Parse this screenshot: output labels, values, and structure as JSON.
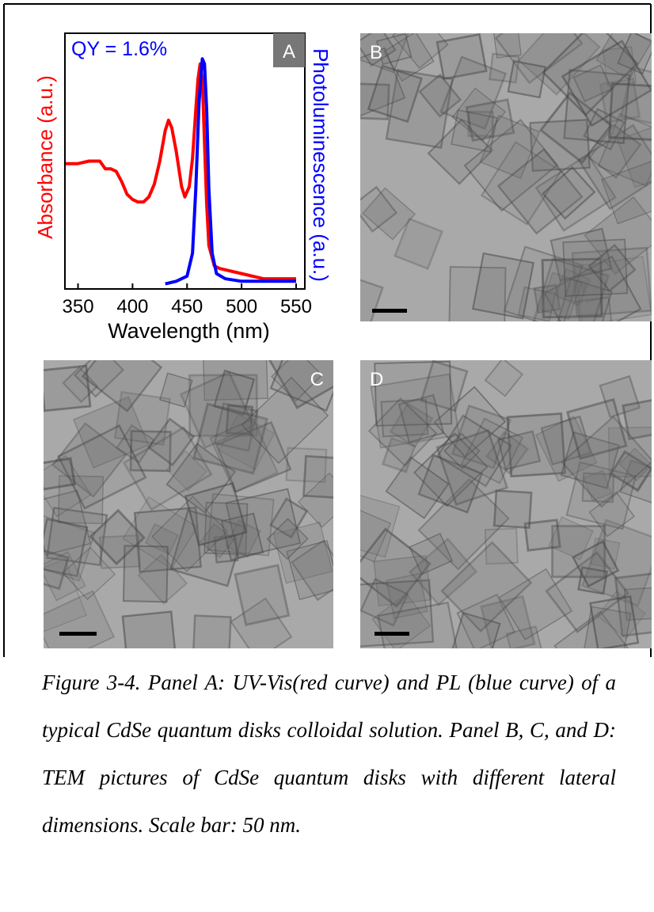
{
  "chart_data": {
    "type": "line",
    "panel_label": "A",
    "annotation": "QY = 1.6%",
    "xlabel": "Wavelength (nm)",
    "ylabel": "Absorbance (a.u.)",
    "y2label": "Photoluminescence (a.u.)",
    "xlim": [
      338,
      558
    ],
    "xticks": [
      350,
      400,
      450,
      500,
      550
    ],
    "ylim": [
      0,
      1
    ],
    "y2lim": [
      0,
      1
    ],
    "series": [
      {
        "name": "Absorbance (a.u.)",
        "color": "#ff0000",
        "axis": "y",
        "x": [
          338,
          350,
          360,
          370,
          375,
          380,
          385,
          390,
          395,
          400,
          405,
          410,
          415,
          420,
          425,
          430,
          433,
          436,
          440,
          445,
          448,
          452,
          455,
          458,
          460,
          462,
          464,
          466,
          468,
          470,
          475,
          480,
          500,
          520,
          550
        ],
        "values": [
          0.49,
          0.49,
          0.5,
          0.5,
          0.47,
          0.47,
          0.46,
          0.42,
          0.37,
          0.35,
          0.34,
          0.34,
          0.36,
          0.41,
          0.5,
          0.62,
          0.66,
          0.63,
          0.54,
          0.4,
          0.36,
          0.4,
          0.51,
          0.7,
          0.82,
          0.88,
          0.82,
          0.57,
          0.33,
          0.17,
          0.09,
          0.08,
          0.06,
          0.04,
          0.04
        ]
      },
      {
        "name": "Photoluminescence (a.u.)",
        "color": "#0000ff",
        "axis": "y2",
        "x": [
          430,
          440,
          450,
          455,
          458,
          461,
          464,
          466,
          468,
          470,
          473,
          477,
          485,
          500,
          520,
          550
        ],
        "values": [
          0.02,
          0.03,
          0.05,
          0.14,
          0.39,
          0.73,
          0.9,
          0.88,
          0.7,
          0.39,
          0.14,
          0.06,
          0.04,
          0.03,
          0.03,
          0.03
        ]
      }
    ]
  },
  "panels": [
    {
      "label": "B"
    },
    {
      "label": "C"
    },
    {
      "label": "D"
    }
  ],
  "caption": "Figure 3-4. Panel A: UV-Vis(red curve) and PL (blue curve) of a typical CdSe quantum disks colloidal solution. Panel B, C, and D: TEM pictures of CdSe quantum disks with different lateral dimensions. Scale bar: 50 nm."
}
